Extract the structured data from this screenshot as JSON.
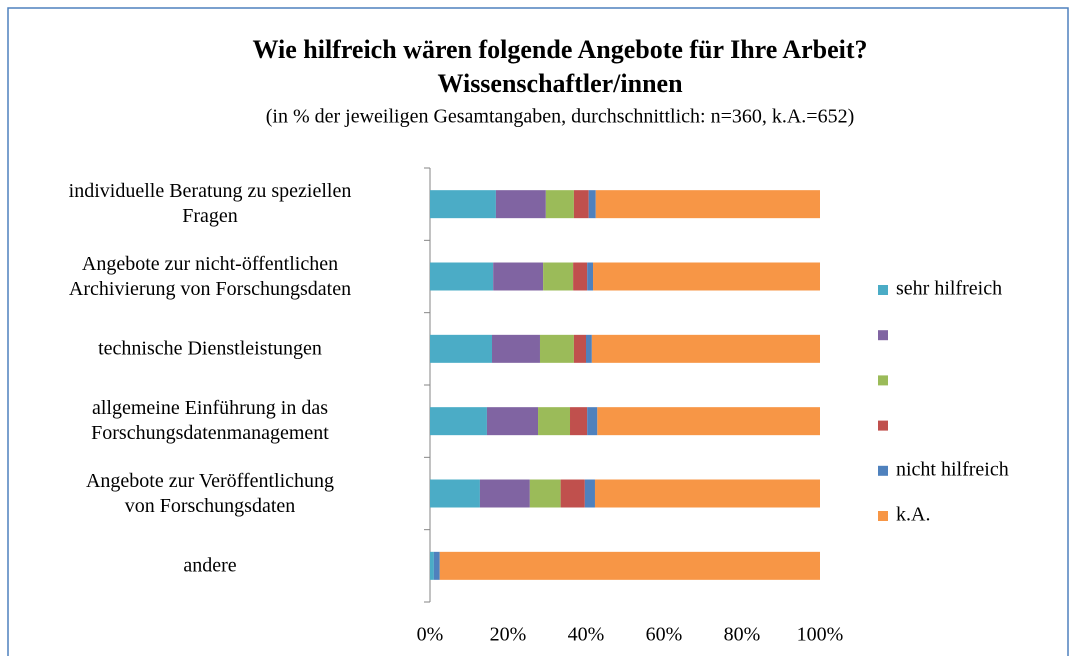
{
  "chart_data": {
    "type": "stacked-barh",
    "title": "Wie hilfreich wären folgende Angebote für Ihre Arbeit?",
    "subtitle": "Wissenschaftler/innen",
    "note": "(in % der jeweiligen Gesamtangaben, durchschnittlich: n=360, k.A.=652)",
    "categories": [
      "individuelle Beratung zu speziellen\nFragen",
      "Angebote zur nicht-öffentlichen\nArchivierung von Forschungsdaten",
      "technische Dienstleistungen",
      "allgemeine Einführung in das\nForschungsdatenmanagement",
      "Angebote zur Veröffentlichung\nvon Forschungsdaten",
      "andere"
    ],
    "series": [
      {
        "name": "sehr hilfreich",
        "color": "#4bacc6",
        "values": [
          16.9,
          16.2,
          15.9,
          14.6,
          12.8,
          1.0
        ]
      },
      {
        "name": null,
        "color": "#8064a2",
        "values": [
          12.8,
          12.8,
          12.3,
          13.1,
          12.8,
          0
        ]
      },
      {
        "name": null,
        "color": "#9bbb59",
        "values": [
          7.2,
          7.7,
          8.7,
          8.2,
          7.9,
          0
        ]
      },
      {
        "name": null,
        "color": "#c0504d",
        "values": [
          3.8,
          3.6,
          3.1,
          4.4,
          6.2,
          0
        ]
      },
      {
        "name": "nicht hilfreich",
        "color": "#4f81bd",
        "values": [
          1.8,
          1.5,
          1.5,
          2.6,
          2.6,
          1.5
        ]
      },
      {
        "name": "k.A.",
        "color": "#f79646",
        "values": [
          57.5,
          58.2,
          58.5,
          57.1,
          57.7,
          97.5
        ]
      }
    ],
    "xlim": [
      0,
      100
    ],
    "xticks": [
      {
        "value": 0,
        "label": "0%"
      },
      {
        "value": 20,
        "label": "20%"
      },
      {
        "value": 40,
        "label": "40%"
      },
      {
        "value": 60,
        "label": "60%"
      },
      {
        "value": 80,
        "label": "80%"
      },
      {
        "value": 100,
        "label": "100%"
      }
    ],
    "legend": "right"
  }
}
